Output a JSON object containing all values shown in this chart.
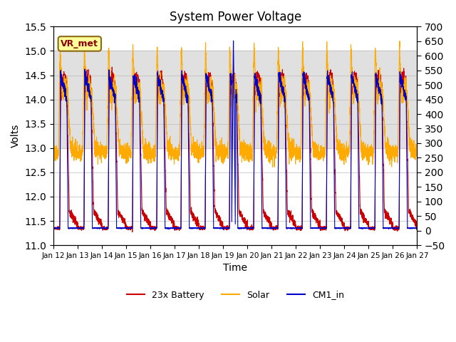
{
  "title": "System Power Voltage",
  "xlabel": "Time",
  "ylabel_left": "Volts",
  "ylim_left": [
    11.0,
    15.5
  ],
  "ylim_right": [
    -50,
    700
  ],
  "yticks_right": [
    -50,
    0,
    50,
    100,
    150,
    200,
    250,
    300,
    350,
    400,
    450,
    500,
    550,
    600,
    650,
    700
  ],
  "yticks_left": [
    11.0,
    11.5,
    12.0,
    12.5,
    13.0,
    13.5,
    14.0,
    14.5,
    15.0,
    15.5
  ],
  "xtick_labels": [
    "Jan 12",
    "Jan 13",
    "Jan 14",
    "Jan 15",
    "Jan 16",
    "Jan 17",
    "Jan 18",
    "Jan 19",
    "Jan 20",
    "Jan 21",
    "Jan 22",
    "Jan 23",
    "Jan 24",
    "Jan 25",
    "Jan 26",
    "Jan 27"
  ],
  "xtick_positions": [
    0,
    1,
    2,
    3,
    4,
    5,
    6,
    7,
    8,
    9,
    10,
    11,
    12,
    13,
    14,
    15
  ],
  "color_battery": "#cc0000",
  "color_solar": "#ffaa00",
  "color_cm1": "#0000cc",
  "legend_labels": [
    "23x Battery",
    "Solar",
    "CM1_in"
  ],
  "vr_met_label": "VR_met",
  "background_band_ymin": 13.0,
  "background_band_ymax": 15.0,
  "background_band_color": "#e0e0e0",
  "n_days": 15,
  "pts_per_day": 288,
  "xlim": [
    0,
    15
  ]
}
